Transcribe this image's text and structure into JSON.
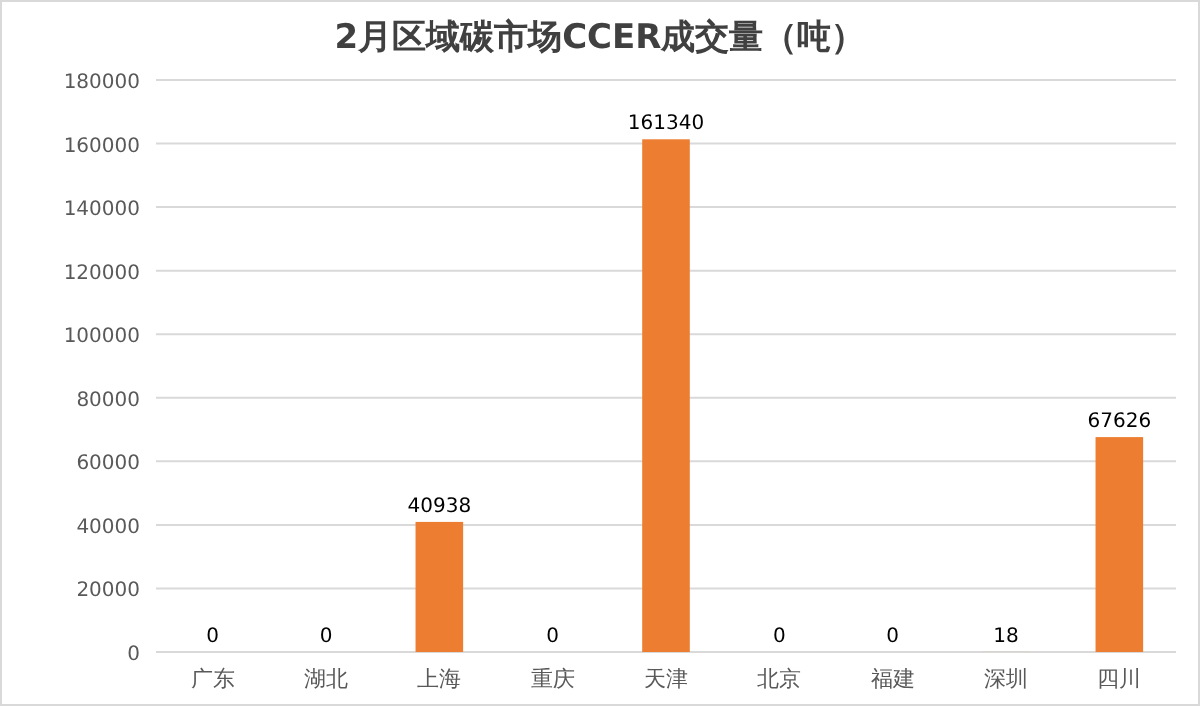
{
  "chart_data": {
    "type": "bar",
    "title": "2月区域碳市场CCER成交量（吨）",
    "categories": [
      "广东",
      "湖北",
      "上海",
      "重庆",
      "天津",
      "北京",
      "福建",
      "深圳",
      "四川"
    ],
    "values": [
      0,
      0,
      40938,
      0,
      161340,
      0,
      0,
      18,
      67626
    ],
    "color": "#ed7d31",
    "ylim": [
      0,
      180000
    ],
    "yticks": [
      0,
      20000,
      40000,
      60000,
      80000,
      100000,
      120000,
      140000,
      160000,
      180000
    ],
    "grid": "y",
    "data_labels": true
  }
}
